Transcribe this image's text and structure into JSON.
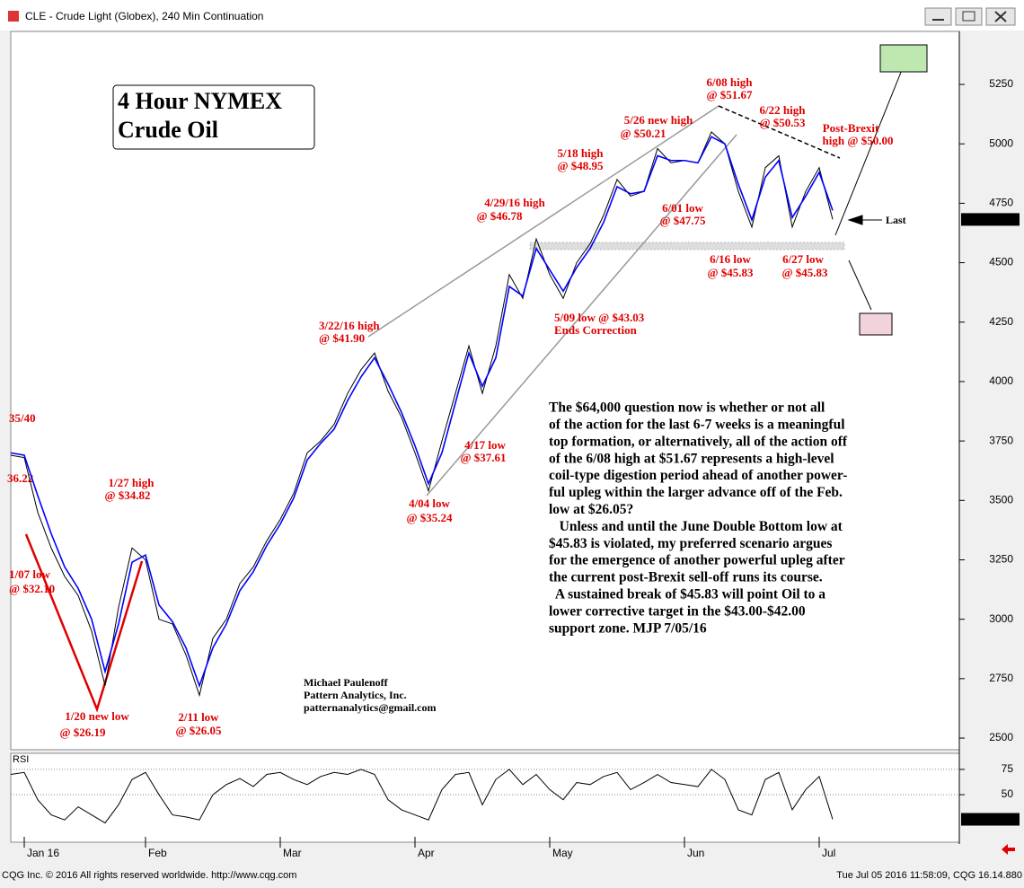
{
  "window": {
    "title": "CLE - Crude Light (Globex), 240 Min Continuation"
  },
  "title_box": [
    "4 Hour NYMEX",
    "Crude Oil"
  ],
  "chart_data": [
    {
      "type": "line",
      "categories": [
        null,
        "Jan 16",
        null,
        null,
        null,
        null,
        null,
        null,
        null,
        null,
        "Feb",
        null,
        null,
        null,
        null,
        null,
        null,
        null,
        null,
        null,
        "Mar",
        null,
        null,
        null,
        null,
        null,
        null,
        null,
        null,
        null,
        "Apr",
        null,
        null,
        null,
        null,
        null,
        null,
        null,
        null,
        null,
        "May",
        null,
        null,
        null,
        null,
        null,
        null,
        null,
        null,
        null,
        "Jun",
        null,
        null,
        null,
        null,
        null,
        null,
        null,
        null,
        null,
        "Jul",
        null
      ],
      "series": [
        {
          "color": "#000000",
          "values": [
            3690,
            3680,
            3450,
            3300,
            3180,
            3100,
            2950,
            2720,
            3050,
            3300,
            3250,
            3000,
            2980,
            2850,
            2680,
            2920,
            3000,
            3150,
            3220,
            3330,
            3420,
            3530,
            3700,
            3750,
            3820,
            3950,
            4050,
            4120,
            3960,
            3850,
            3700,
            3540,
            3750,
            3950,
            4150,
            3950,
            4150,
            4450,
            4350,
            4600,
            4450,
            4350,
            4500,
            4580,
            4700,
            4850,
            4780,
            4800,
            4980,
            4920,
            4930,
            4920,
            5050,
            5000,
            4800,
            4650,
            4900,
            4950,
            4650,
            4800,
            4900,
            4682
          ]
        },
        {
          "color": "#0000ff",
          "values": [
            3700,
            3690,
            3520,
            3360,
            3220,
            3130,
            3000,
            2780,
            2980,
            3240,
            3270,
            3060,
            2990,
            2880,
            2720,
            2880,
            2980,
            3120,
            3200,
            3310,
            3400,
            3510,
            3670,
            3740,
            3800,
            3920,
            4020,
            4100,
            3990,
            3870,
            3730,
            3570,
            3700,
            3910,
            4120,
            3980,
            4100,
            4400,
            4360,
            4560,
            4470,
            4380,
            4480,
            4560,
            4670,
            4820,
            4790,
            4800,
            4950,
            4930,
            4930,
            4920,
            5030,
            5000,
            4830,
            4680,
            4860,
            4930,
            4690,
            4780,
            4880,
            4720
          ]
        }
      ],
      "ylim": [
        2451,
        5473
      ],
      "yticks": [
        2500,
        2750,
        3000,
        3250,
        3500,
        3750,
        4000,
        4250,
        4500,
        4750,
        5000,
        5250
      ],
      "last_value": 4682
    },
    {
      "type": "line",
      "title": "RSI",
      "series": [
        {
          "color": "#000000",
          "values": [
            70,
            72,
            45,
            30,
            25,
            38,
            30,
            22,
            40,
            65,
            72,
            50,
            30,
            28,
            25,
            50,
            60,
            66,
            58,
            70,
            72,
            65,
            60,
            68,
            72,
            70,
            75,
            70,
            45,
            35,
            30,
            25,
            55,
            70,
            72,
            40,
            65,
            75,
            60,
            70,
            55,
            45,
            62,
            60,
            68,
            72,
            55,
            62,
            70,
            62,
            60,
            58,
            75,
            65,
            35,
            30,
            65,
            72,
            35,
            55,
            68,
            25.63
          ]
        }
      ],
      "ylim": [
        3,
        90
      ],
      "yticks": [
        50,
        75
      ],
      "last_value": 25.63
    }
  ],
  "annotations": [
    [
      "6/08 high",
      "@ $51.67"
    ],
    [
      "5/26 new high",
      "@ $50.21"
    ],
    [
      "6/22 high",
      "@ $50.53"
    ],
    [
      "Post-Brexit",
      "high @ $50.00"
    ],
    [
      "5/18 high",
      "@ $48.95"
    ],
    [
      "4/29/16 high",
      "@ $46.78"
    ],
    [
      "6/01 low",
      "@ $47.75"
    ],
    [
      "6/16 low",
      "@ $45.83"
    ],
    [
      "6/27 low",
      "@ $45.83"
    ],
    [
      "3/22/16 high",
      "@ $41.90"
    ],
    [
      "5/09 low @ $43.03",
      "Ends Correction"
    ],
    [
      "4/17 low",
      "@ $37.61"
    ],
    [
      "4/04 low",
      "@ $35.24"
    ],
    [
      "1/27 high",
      "@ $34.82"
    ],
    [
      "1/20 new low",
      "@ $26.19"
    ],
    [
      "2/11 low",
      "@ $26.05"
    ],
    [
      "35/40"
    ],
    [
      "36.22"
    ],
    [
      "1/07 low",
      "@ $32.10"
    ]
  ],
  "last_label": "Last",
  "author": [
    "Michael Paulenoff",
    "Pattern Analytics, Inc.",
    "patternanalytics@gmail.com"
  ],
  "commentary": [
    "The $64,000 question now is whether or not all",
    "of the action for the last 6-7 weeks is a meaningful",
    "top formation, or alternatively, all of the action off",
    "of the 6/08 high at $51.67 represents a high-level",
    "coil-type digestion period ahead of another power-",
    "ful upleg within the larger advance off of the Feb.",
    "low at $26.05?",
    "   Unless and until the June Double Bottom low at",
    "$45.83 is violated, my preferred scenario argues",
    "for the emergence of another powerful upleg after",
    "the current post-Brexit sell-off runs its course.",
    "  A sustained break of $45.83 will point Oil to a",
    "lower corrective target in the $43.00-$42.00",
    "support zone. MJP 7/05/16"
  ],
  "footer": {
    "left": "CQG Inc. © 2016 All rights reserved worldwide. http://www.cqg.com",
    "right": "Tue Jul 05 2016 11:58:09, CQG 16.14.880"
  }
}
